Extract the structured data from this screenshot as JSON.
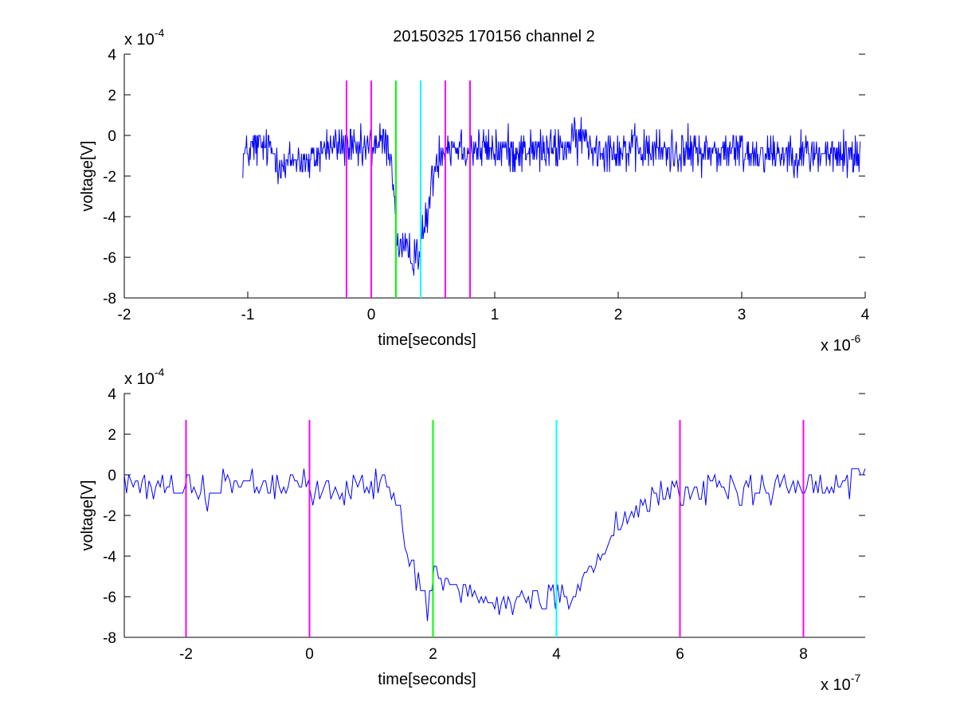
{
  "figure": {
    "title": "20150325 170156 channel 2"
  },
  "chart_data": [
    {
      "type": "line",
      "title": "20150325 170156 channel 2",
      "xlabel": "time[seconds]",
      "ylabel": "voltage[V]",
      "x_multiplier": "x 10",
      "x_exponent": "-6",
      "y_multiplier": "x 10",
      "y_exponent": "-4",
      "xlim": [
        -2,
        4
      ],
      "ylim": [
        -8,
        4
      ],
      "xticks": [
        "-2",
        "-1",
        "0",
        "1",
        "2",
        "3",
        "4"
      ],
      "yticks": [
        "-8",
        "-6",
        "-4",
        "-2",
        "0",
        "2",
        "4"
      ],
      "grid": false,
      "signal": {
        "color": "#0000ff",
        "x": [
          -1.04,
          -0.9,
          -0.8,
          -0.7,
          -0.6,
          -0.5,
          -0.4,
          -0.3,
          -0.2,
          -0.1,
          0.0,
          0.1,
          0.15,
          0.18,
          0.2,
          0.22,
          0.25,
          0.3,
          0.35,
          0.4,
          0.45,
          0.5,
          0.55,
          0.6,
          0.8,
          1.0,
          1.2,
          1.4,
          1.6,
          1.7,
          1.8,
          2.0,
          2.5,
          3.0,
          3.5,
          3.96
        ],
        "y": [
          -1.0,
          -0.5,
          -0.7,
          -1.6,
          -1.1,
          -1.5,
          -0.7,
          -0.5,
          -0.6,
          -0.9,
          -0.5,
          -0.3,
          -0.8,
          -2.0,
          -4.6,
          -5.4,
          -5.5,
          -6.0,
          -5.8,
          -5.5,
          -4.0,
          -2.0,
          -0.8,
          -0.5,
          -0.6,
          -0.7,
          -0.7,
          -0.8,
          -0.5,
          -0.1,
          -0.6,
          -0.7,
          -0.8,
          -0.8,
          -0.9,
          -1.0
        ]
      },
      "markers": [
        {
          "x": -0.2,
          "color": "#ff00ff"
        },
        {
          "x": 0.0,
          "color": "#ff00ff"
        },
        {
          "x": 0.2,
          "color": "#00ff00"
        },
        {
          "x": 0.4,
          "color": "#00ffff"
        },
        {
          "x": 0.6,
          "color": "#ff00ff"
        },
        {
          "x": 0.8,
          "color": "#ff00ff"
        }
      ],
      "marker_ylim": [
        -8,
        2.7
      ]
    },
    {
      "type": "line",
      "title": "",
      "xlabel": "time[seconds]",
      "ylabel": "voltage[V]",
      "x_multiplier": "x 10",
      "x_exponent": "-7",
      "y_multiplier": "x 10",
      "y_exponent": "-4",
      "xlim": [
        -3,
        9
      ],
      "ylim": [
        -8,
        4
      ],
      "xticks": [
        "-2",
        "0",
        "2",
        "4",
        "6",
        "8"
      ],
      "yticks": [
        "-8",
        "-6",
        "-4",
        "-2",
        "0",
        "2",
        "4"
      ],
      "grid": false,
      "signal": {
        "color": "#0000ff",
        "x": [
          -3.0,
          -2.6,
          -2.2,
          -2.0,
          -1.8,
          -1.4,
          -1.0,
          -0.6,
          -0.2,
          0.0,
          0.4,
          0.8,
          1.2,
          1.4,
          1.6,
          1.8,
          1.95,
          2.0,
          2.2,
          2.6,
          3.0,
          3.4,
          3.8,
          4.0,
          4.2,
          4.6,
          5.0,
          5.4,
          5.8,
          6.2,
          6.6,
          7.0,
          7.4,
          7.8,
          8.2,
          8.6,
          9.0
        ],
        "y": [
          -0.5,
          -0.4,
          -0.7,
          -0.5,
          -0.9,
          -0.5,
          -0.4,
          -0.6,
          -0.5,
          -0.8,
          -0.6,
          -0.6,
          -0.5,
          -1.2,
          -4.0,
          -5.5,
          -6.6,
          -4.8,
          -5.0,
          -5.8,
          -6.0,
          -6.1,
          -6.1,
          -5.8,
          -6.0,
          -4.5,
          -2.2,
          -1.4,
          -0.8,
          -1.0,
          -0.4,
          -0.6,
          -0.7,
          -0.5,
          -0.6,
          -0.5,
          0.0
        ]
      },
      "markers": [
        {
          "x": -2.0,
          "color": "#ff00ff"
        },
        {
          "x": 0.0,
          "color": "#ff00ff"
        },
        {
          "x": 2.0,
          "color": "#00ff00"
        },
        {
          "x": 4.0,
          "color": "#00ffff"
        },
        {
          "x": 6.0,
          "color": "#ff00ff"
        },
        {
          "x": 8.0,
          "color": "#ff00ff"
        }
      ],
      "marker_ylim": [
        -8,
        2.7
      ]
    }
  ]
}
